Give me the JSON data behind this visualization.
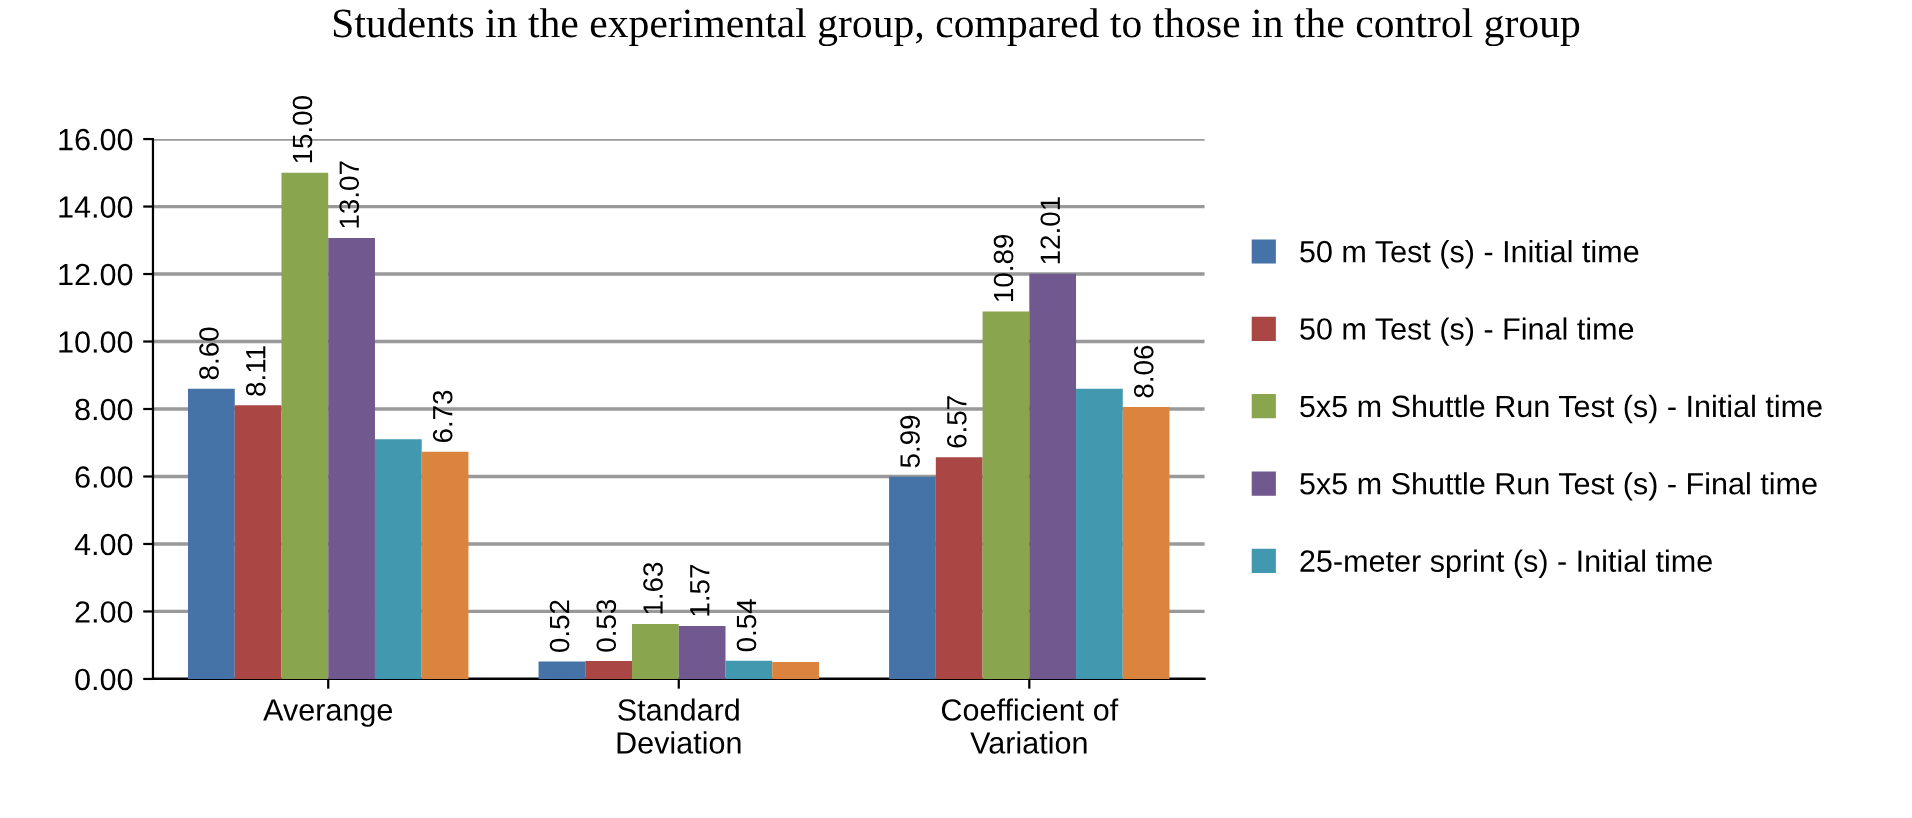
{
  "chart_data": {
    "type": "bar",
    "title": "Students in the experimental group, compared to those in the control group",
    "categories": [
      "Averange",
      "Standard\nDeviation",
      "Coefficient of\nVariation"
    ],
    "series": [
      {
        "name": "50 m Test (s) - Initial time",
        "color": "#4572a7",
        "values": [
          8.6,
          0.52,
          5.99
        ],
        "value_labels": [
          "8.60",
          "0.52",
          "5.99"
        ]
      },
      {
        "name": "50 m Test (s) - Final time",
        "color": "#aa4643",
        "values": [
          8.11,
          0.53,
          6.57
        ],
        "value_labels": [
          "8.11",
          "0.53",
          "6.57"
        ]
      },
      {
        "name": "5x5 m Shuttle Run Test (s) - Initial time",
        "color": "#89a54e",
        "values": [
          15.0,
          1.63,
          10.89
        ],
        "value_labels": [
          "15.00",
          "1.63",
          "10.89"
        ]
      },
      {
        "name": "5x5 m Shuttle Run Test (s) - Final time",
        "color": "#71588f",
        "values": [
          13.07,
          1.57,
          12.01
        ],
        "value_labels": [
          "13.07",
          "1.57",
          "12.01"
        ]
      },
      {
        "name": "25-meter sprint (s) - Initial time",
        "color": "#4198af",
        "values": [
          7.1,
          0.54,
          8.6
        ],
        "value_labels": [
          null,
          "0.54",
          null
        ]
      },
      {
        "color": "#db843d",
        "values": [
          6.73,
          0.5,
          8.06
        ],
        "value_labels": [
          "6.73",
          null,
          "8.06"
        ]
      }
    ],
    "ylim": [
      0,
      16
    ],
    "yticks": [
      {
        "value": 0,
        "label": "0.00"
      },
      {
        "value": 2,
        "label": "2.00"
      },
      {
        "value": 4,
        "label": "4.00"
      },
      {
        "value": 6,
        "label": "6.00"
      },
      {
        "value": 8,
        "label": "8.00"
      },
      {
        "value": 10,
        "label": "10.00"
      },
      {
        "value": 12,
        "label": "12.00"
      },
      {
        "value": 14,
        "label": "14.00"
      },
      {
        "value": 16,
        "label": "16.00"
      }
    ],
    "grid": "y",
    "legend": "right"
  }
}
